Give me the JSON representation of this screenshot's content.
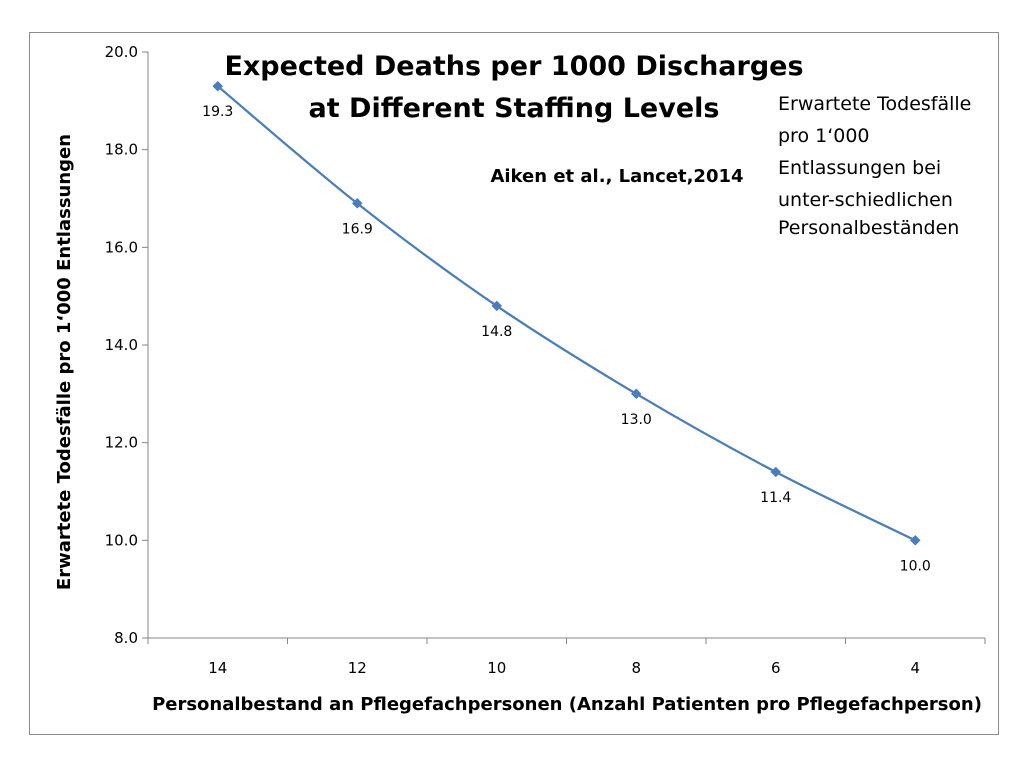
{
  "chart_data": {
    "type": "line",
    "title": "Expected Deaths per 1000 Discharges",
    "subtitle": "at Different Staffing Levels",
    "source": "Aiken et al., Lancet,2014",
    "side_note": [
      "Erwartete Todesfälle",
      "pro 1‘000",
      "Entlassungen bei",
      "unter-schiedlichen",
      "Personalbeständen"
    ],
    "xlabel": "Personalbestand an Pflegefachpersonen (Anzahl Patienten pro Pflegefachperson)",
    "ylabel": "Erwartete Todesfälle pro 1‘000 Entlassungen",
    "categories": [
      "14",
      "12",
      "10",
      "8",
      "6",
      "4"
    ],
    "series": [
      {
        "values": [
          19.3,
          16.9,
          14.8,
          13.0,
          11.4,
          10.0
        ],
        "labels": [
          "19.3",
          "16.9",
          "14.8",
          "13.0",
          "11.4",
          "10.0"
        ],
        "color": "#4a7ebb"
      }
    ],
    "ylim": [
      8.0,
      20.0
    ],
    "yticks": [
      "8.0",
      "10.0",
      "12.0",
      "14.0",
      "16.0",
      "18.0",
      "20.0"
    ],
    "grid": false,
    "legend": "none"
  }
}
